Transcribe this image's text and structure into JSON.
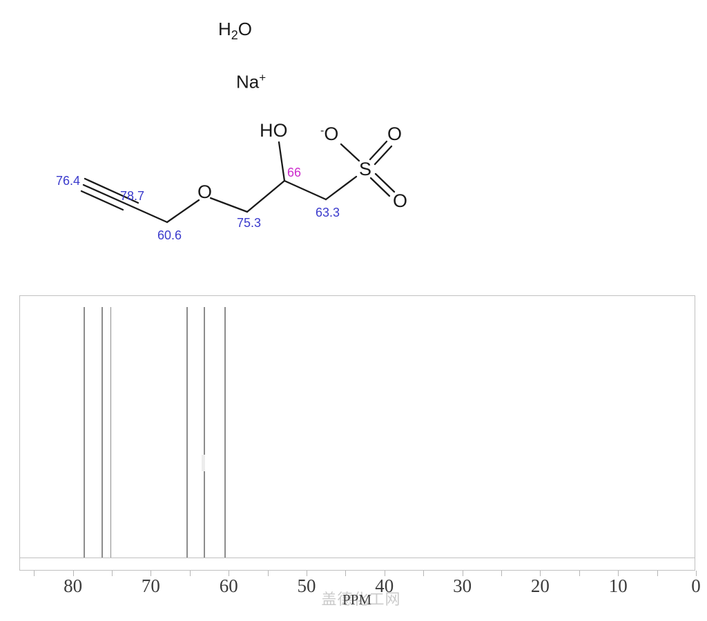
{
  "page": {
    "watermark": "盖德化工网"
  },
  "molecule": {
    "solvent": {
      "h": "H",
      "sub": "2",
      "o": "O"
    },
    "counterion": {
      "symbol": "Na",
      "charge": "+"
    },
    "atoms": {
      "hydroxyl": "HO",
      "ether_oxygen": "O",
      "sulfonate_o_minus_charge": "-",
      "sulfonate_o_minus": "O",
      "sulfur": "S",
      "sulfonate_o_top": "O",
      "sulfonate_o_bottom": "O"
    },
    "shift_labels": [
      {
        "value": "76.4",
        "highlight": false
      },
      {
        "value": "78.7",
        "highlight": false
      },
      {
        "value": "60.6",
        "highlight": false
      },
      {
        "value": "75.3",
        "highlight": false
      },
      {
        "value": "66",
        "highlight": true
      },
      {
        "value": "63.3",
        "highlight": false
      }
    ]
  },
  "colors": {
    "bond": "#1a1a1a",
    "shift_label": "#3a3acc",
    "shift_label_highlight": "#cc2bcc",
    "peak_line": "#8c8c8c",
    "plot_frame": "#c0c0c0",
    "axis_text": "#3c3c3c",
    "watermark": "#cbcbcb"
  },
  "chart_data": {
    "type": "bar",
    "subtype": "nmr-stick-spectrum",
    "xlabel": "PPM",
    "ylabel": "",
    "grid": false,
    "legend": false,
    "x_axis": {
      "reversed": true,
      "left_edge_ppm": 86.8,
      "right_edge_ppm": 0,
      "minor_tick_step": 5,
      "minor_tick_min": 0,
      "minor_tick_max": 85,
      "labeled_ticks": [
        "80",
        "70",
        "60",
        "50",
        "40",
        "30",
        "20",
        "10",
        "0"
      ]
    },
    "peaks_ppm": [
      78.7,
      76.4,
      75.3,
      65.5,
      63.3,
      60.6
    ],
    "peak_relative_intensity": [
      1,
      1,
      1,
      1,
      1,
      1
    ]
  }
}
